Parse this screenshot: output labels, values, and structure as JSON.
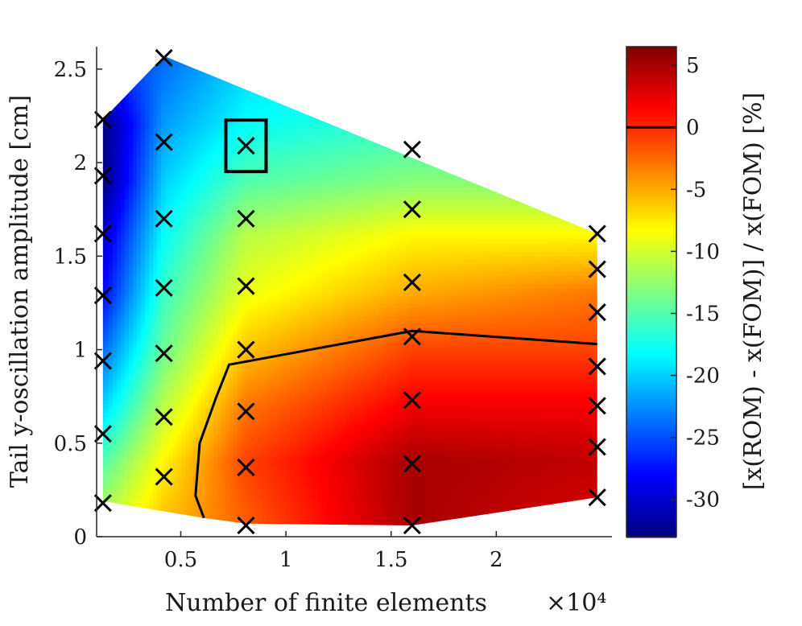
{
  "chart_data": {
    "type": "heatmap",
    "xlabel": "Number of finite elements",
    "x_multiplier": "×10⁴",
    "ylabel": "Tail y-oscillation amplitude [cm]",
    "colorbar_label": "[x(ROM) - x(FOM)] / x(FOM) [%]",
    "xlim": [
      0.1,
      2.55
    ],
    "ylim": [
      0,
      2.62
    ],
    "clim": [
      -33,
      6.5
    ],
    "colormap": "jet",
    "xticks": [
      0.5,
      1,
      1.5,
      2
    ],
    "xtick_labels": [
      "0.5",
      "1",
      "1.5",
      "2"
    ],
    "yticks": [
      0,
      0.5,
      1,
      1.5,
      2,
      2.5
    ],
    "ytick_labels": [
      "0",
      "0.5",
      "1",
      "1.5",
      "2",
      "2.5"
    ],
    "cticks": [
      5,
      0,
      -5,
      -10,
      -15,
      -20,
      -25,
      -30
    ],
    "ctick_labels": [
      "5",
      "0",
      "-5",
      "-10",
      "-15",
      "-20",
      "-25",
      "-30"
    ],
    "colorbar_marker": 0,
    "samples": [
      {
        "x": 0.13,
        "y": [
          0.18,
          0.55,
          0.94,
          1.29,
          1.62,
          1.93,
          2.23
        ]
      },
      {
        "x": 0.42,
        "y": [
          0.32,
          0.64,
          0.98,
          1.33,
          1.7,
          2.11,
          2.56
        ]
      },
      {
        "x": 0.81,
        "y": [
          0.06,
          0.37,
          0.67,
          1.0,
          1.34,
          1.7,
          2.09
        ]
      },
      {
        "x": 1.6,
        "y": [
          0.06,
          0.39,
          0.73,
          1.07,
          1.36,
          1.75,
          2.07
        ]
      },
      {
        "x": 2.48,
        "y": [
          0.21,
          0.48,
          0.7,
          0.91,
          1.2,
          1.43,
          1.62
        ]
      }
    ],
    "highlighted_sample": {
      "x": 0.81,
      "y": 2.09
    },
    "zero_contour": [
      [
        0.61,
        0.1
      ],
      [
        0.57,
        0.22
      ],
      [
        0.59,
        0.5
      ],
      [
        0.67,
        0.75
      ],
      [
        0.73,
        0.92
      ],
      [
        1.6,
        1.1
      ],
      [
        2.48,
        1.03
      ]
    ],
    "domain_polygon": [
      [
        0.13,
        0.19
      ],
      [
        0.13,
        2.23
      ],
      [
        0.42,
        2.57
      ],
      [
        2.48,
        1.62
      ],
      [
        2.48,
        0.21
      ],
      [
        1.6,
        0.06
      ],
      [
        0.81,
        0.07
      ],
      [
        0.61,
        0.1
      ]
    ],
    "error_field": {
      "x": [
        0.13,
        0.42,
        0.81,
        1.6,
        2.48
      ],
      "y": [
        0.1,
        0.4,
        0.7,
        1.0,
        1.3,
        1.6,
        1.9,
        2.2,
        2.55
      ],
      "values": [
        [
          -11,
          -6,
          -2,
          5,
          3
        ],
        [
          -15,
          -8,
          -1,
          5,
          4
        ],
        [
          -20,
          -11,
          -3,
          2,
          2
        ],
        [
          -24,
          -14,
          -6,
          -1,
          -1
        ],
        [
          -28,
          -16,
          -9,
          -5,
          -3
        ],
        [
          -30,
          -18,
          -11,
          -8,
          -8
        ],
        [
          -33,
          -20,
          -15,
          -13,
          -13
        ],
        [
          -33,
          -22,
          -18,
          -16,
          -16
        ],
        [
          -26,
          -24,
          -20,
          -18,
          -18
        ]
      ]
    }
  }
}
